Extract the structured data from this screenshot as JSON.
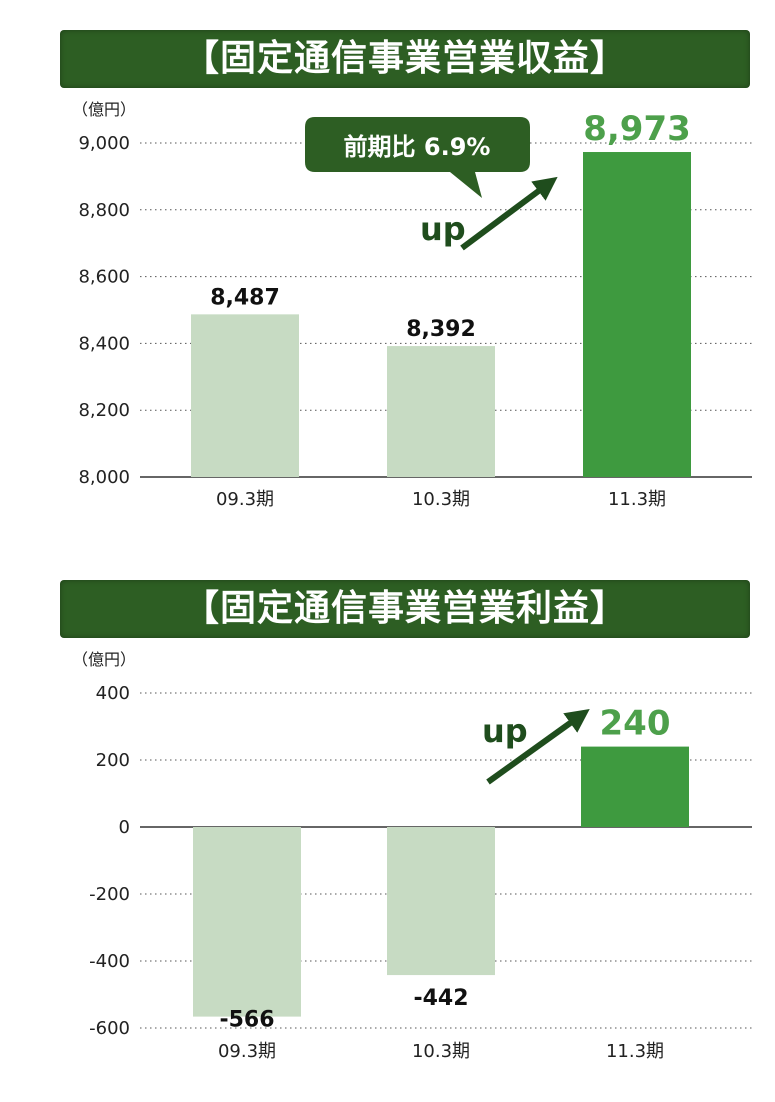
{
  "chart_data": [
    {
      "type": "bar",
      "title": "【固定通信事業営業収益】",
      "unit_label": "（億円）",
      "categories": [
        "09.3期",
        "10.3期",
        "11.3期"
      ],
      "values": [
        8487,
        8392,
        8973
      ],
      "value_labels": [
        "8,487",
        "8,392",
        "8,973"
      ],
      "ylim": [
        8000,
        9000
      ],
      "yticks": [
        8000,
        8200,
        8400,
        8600,
        8800,
        9000
      ],
      "ytick_labels": [
        "8,000",
        "8,200",
        "8,400",
        "8,600",
        "8,800",
        "9,000"
      ],
      "grid": true,
      "annotations": {
        "callout": "前期比 6.9%",
        "arrow_label": "up"
      },
      "colors": {
        "past": "#c7dbc3",
        "current": "#3e9a3f",
        "label_current": "#4da04b",
        "banner": "#2d5e23"
      }
    },
    {
      "type": "bar",
      "title": "【固定通信事業営業利益】",
      "unit_label": "（億円）",
      "categories": [
        "09.3期",
        "10.3期",
        "11.3期"
      ],
      "values": [
        -566,
        -442,
        240
      ],
      "value_labels": [
        "-566",
        "-442",
        "240"
      ],
      "ylim": [
        -600,
        400
      ],
      "yticks": [
        -600,
        -400,
        -200,
        0,
        200,
        400
      ],
      "ytick_labels": [
        "-600",
        "-400",
        "-200",
        "0",
        "200",
        "400"
      ],
      "grid": true,
      "annotations": {
        "arrow_label": "up"
      },
      "colors": {
        "past": "#c7dbc3",
        "current": "#3e9a3f",
        "label_current": "#4da04b",
        "banner": "#2d5e23"
      }
    }
  ]
}
